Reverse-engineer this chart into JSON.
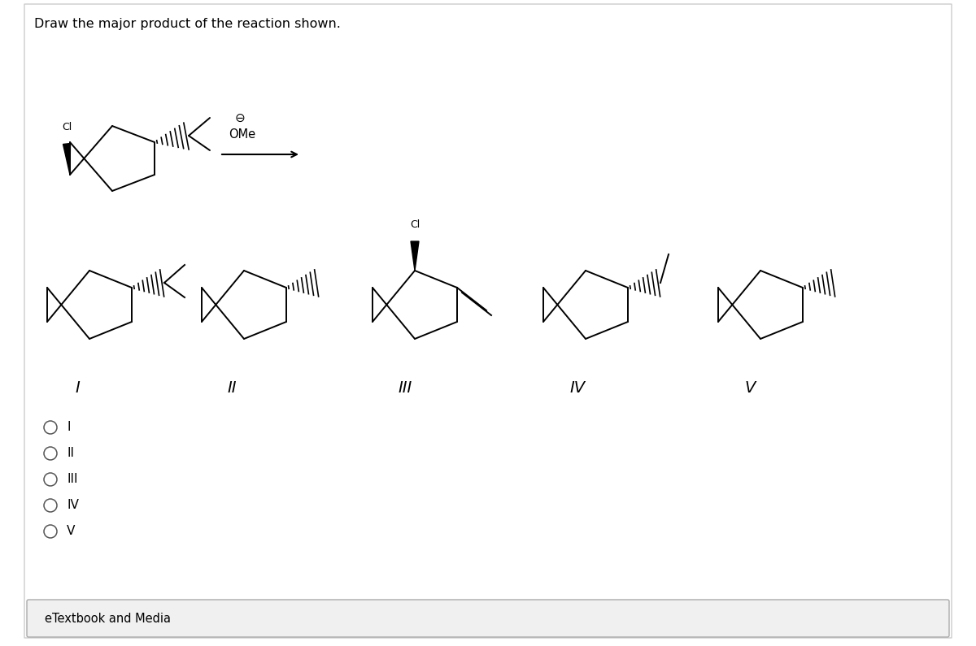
{
  "title": "Draw the major product of the reaction shown.",
  "background_color": "#ffffff",
  "text_color": "#000000",
  "radio_options": [
    "I",
    "II",
    "III",
    "IV",
    "V"
  ],
  "etextbook_label": "eTextbook and Media",
  "reagent_symbol": "⊖",
  "reagent_text": "OMe"
}
